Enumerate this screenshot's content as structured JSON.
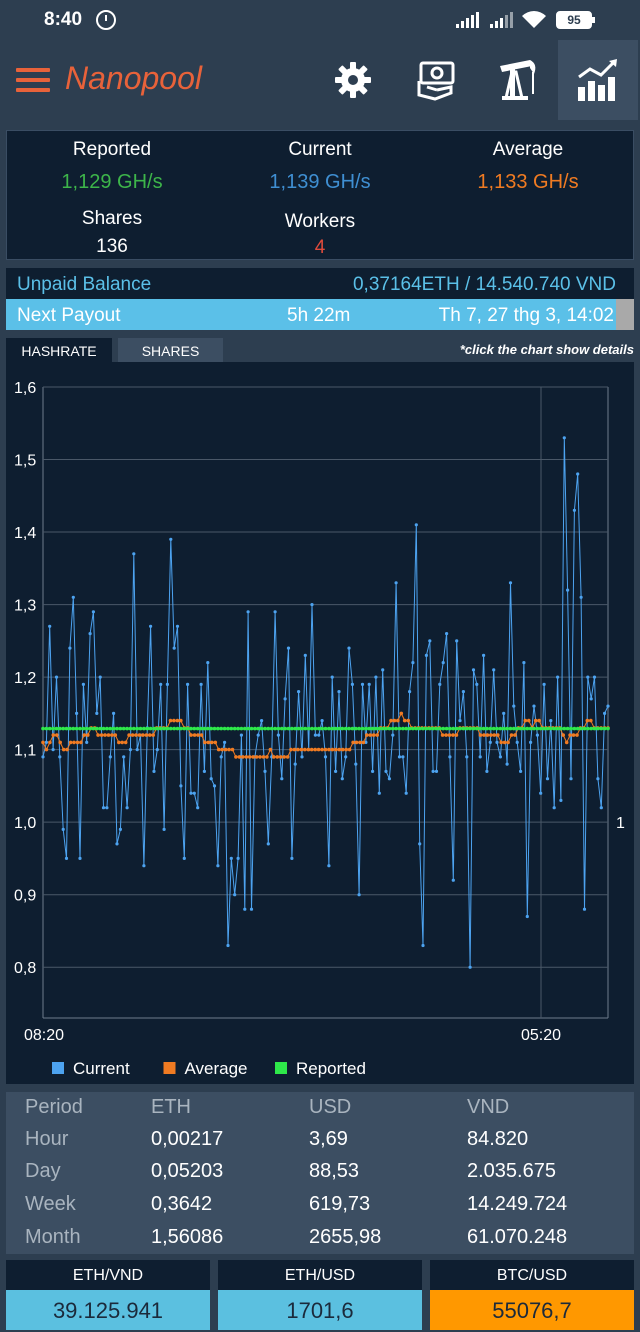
{
  "status_bar": {
    "time": "8:40",
    "battery": "95"
  },
  "app": {
    "title": "Nanopool"
  },
  "toolbar": {
    "icons": [
      "gear-icon",
      "payment-hand-icon",
      "oil-pump-icon",
      "chart-icon"
    ]
  },
  "stats": {
    "reported": {
      "label": "Reported",
      "value": "1,129 GH/s",
      "color": "#3db54a"
    },
    "current": {
      "label": "Current",
      "value": "1,139 GH/s",
      "color": "#3f8fd2"
    },
    "average": {
      "label": "Average",
      "value": "1,133 GH/s",
      "color": "#f07b22"
    },
    "shares": {
      "label": "Shares",
      "value": "136"
    },
    "workers": {
      "label": "Workers",
      "value": "4",
      "color": "#e04b3c"
    }
  },
  "balance": {
    "unpaid_label": "Unpaid Balance",
    "unpaid_value": "0,37164ETH / 14.540.740 VND",
    "payout_label": "Next Payout",
    "payout_eta": "5h 22m",
    "payout_date": "Th 7, 27 thg 3, 14:02"
  },
  "tabs": [
    {
      "label": "HASHRATE"
    },
    {
      "label": "SHARES"
    }
  ],
  "chart_hint": "*click the chart show details",
  "chart_data": {
    "type": "line",
    "x_ticks": [
      "08:20",
      "05:20"
    ],
    "y_ticks": [
      "1,6",
      "1,5",
      "1,4",
      "1,3",
      "1,2",
      "1,1",
      "1,0",
      "0,9",
      "0,8"
    ],
    "right_tick": "1",
    "ylim": [
      0.73,
      1.6
    ],
    "legend_position": "bottom-left",
    "series": [
      {
        "name": "Current",
        "color": "#4da3f0",
        "values": [
          1.09,
          1.11,
          1.27,
          1.1,
          1.2,
          1.09,
          0.99,
          0.95,
          1.24,
          1.31,
          1.15,
          0.95,
          1.19,
          1.11,
          1.26,
          1.29,
          1.15,
          1.2,
          1.02,
          1.02,
          1.09,
          1.15,
          0.97,
          0.99,
          1.09,
          1.02,
          1.1,
          1.37,
          1.1,
          1.12,
          0.94,
          1.13,
          1.27,
          1.07,
          1.1,
          1.19,
          0.99,
          1.19,
          1.39,
          1.24,
          1.27,
          1.05,
          0.95,
          1.19,
          1.04,
          1.04,
          1.02,
          1.19,
          1.07,
          1.22,
          1.06,
          1.05,
          0.94,
          1.09,
          1.11,
          0.83,
          0.95,
          0.9,
          0.95,
          1.12,
          0.88,
          1.29,
          0.88,
          1.09,
          1.12,
          1.14,
          1.07,
          0.97,
          1.09,
          1.29,
          1.12,
          1.06,
          1.17,
          1.24,
          0.95,
          1.08,
          1.18,
          1.09,
          1.23,
          1.1,
          1.3,
          1.12,
          1.12,
          1.14,
          1.09,
          0.94,
          1.2,
          1.07,
          1.18,
          1.06,
          1.09,
          1.24,
          1.19,
          1.08,
          0.9,
          1.19,
          1.11,
          1.19,
          1.07,
          1.2,
          1.04,
          1.21,
          1.07,
          1.06,
          1.12,
          1.33,
          1.09,
          1.09,
          1.04,
          1.18,
          1.22,
          1.41,
          0.97,
          0.83,
          1.23,
          1.25,
          1.07,
          1.07,
          1.19,
          1.22,
          1.26,
          1.09,
          0.92,
          1.25,
          1.14,
          1.18,
          1.09,
          0.8,
          1.21,
          1.19,
          1.09,
          1.23,
          1.07,
          1.11,
          1.21,
          1.11,
          1.09,
          1.15,
          1.08,
          1.33,
          1.16,
          1.11,
          1.07,
          1.22,
          0.87,
          1.11,
          1.16,
          1.12,
          1.04,
          1.19,
          1.06,
          1.14,
          1.02,
          1.2,
          1.03,
          1.53,
          1.32,
          1.06,
          1.43,
          1.48,
          1.31,
          0.88,
          1.2,
          1.17,
          1.2,
          1.06,
          1.02,
          1.15,
          1.16
        ]
      },
      {
        "name": "Average",
        "color": "#f07b22",
        "values": [
          1.11,
          1.1,
          1.11,
          1.12,
          1.12,
          1.11,
          1.1,
          1.1,
          1.11,
          1.11,
          1.11,
          1.11,
          1.12,
          1.12,
          1.13,
          1.13,
          1.12,
          1.12,
          1.12,
          1.12,
          1.12,
          1.12,
          1.11,
          1.11,
          1.11,
          1.12,
          1.12,
          1.12,
          1.12,
          1.12,
          1.12,
          1.12,
          1.12,
          1.13,
          1.13,
          1.13,
          1.13,
          1.14,
          1.14,
          1.14,
          1.14,
          1.13,
          1.13,
          1.12,
          1.12,
          1.12,
          1.12,
          1.11,
          1.11,
          1.11,
          1.11,
          1.1,
          1.1,
          1.1,
          1.1,
          1.1,
          1.09,
          1.09,
          1.09,
          1.09,
          1.09,
          1.09,
          1.09,
          1.09,
          1.09,
          1.09,
          1.1,
          1.09,
          1.09,
          1.09,
          1.09,
          1.09,
          1.1,
          1.1,
          1.1,
          1.1,
          1.1,
          1.1,
          1.1,
          1.1,
          1.1,
          1.1,
          1.1,
          1.1,
          1.1,
          1.1,
          1.1,
          1.1,
          1.1,
          1.1,
          1.11,
          1.11,
          1.11,
          1.11,
          1.12,
          1.12,
          1.12,
          1.12,
          1.13,
          1.13,
          1.13,
          1.14,
          1.14,
          1.14,
          1.15,
          1.14,
          1.14,
          1.13,
          1.13,
          1.13,
          1.13,
          1.13,
          1.13,
          1.13,
          1.13,
          1.13,
          1.12,
          1.12,
          1.12,
          1.12,
          1.12,
          1.13,
          1.13,
          1.13,
          1.13,
          1.13,
          1.13,
          1.12,
          1.12,
          1.12,
          1.12,
          1.12,
          1.12,
          1.11,
          1.11,
          1.11,
          1.12,
          1.12,
          1.13,
          1.13,
          1.14,
          1.14,
          1.13,
          1.14,
          1.14,
          1.13,
          1.13,
          1.13,
          1.13,
          1.13,
          1.13,
          1.12,
          1.11,
          1.12,
          1.12,
          1.12,
          1.13,
          1.13,
          1.14,
          1.14,
          1.13,
          1.13,
          1.13,
          1.13,
          1.13
        ]
      },
      {
        "name": "Reported",
        "color": "#2ee84a",
        "values": [
          1.129,
          1.129,
          1.129,
          1.129,
          1.129,
          1.129,
          1.129,
          1.129,
          1.129,
          1.129,
          1.129,
          1.129,
          1.129,
          1.129,
          1.129,
          1.129,
          1.129,
          1.129,
          1.129,
          1.129,
          1.129,
          1.129,
          1.129,
          1.129,
          1.129,
          1.129,
          1.129,
          1.129,
          1.129,
          1.129,
          1.129,
          1.129,
          1.129,
          1.129,
          1.129,
          1.129,
          1.129,
          1.129,
          1.129,
          1.129,
          1.129,
          1.129,
          1.129,
          1.129,
          1.129,
          1.129,
          1.129,
          1.129,
          1.129,
          1.129,
          1.129,
          1.129,
          1.129,
          1.129,
          1.129,
          1.129,
          1.129,
          1.129,
          1.129,
          1.129,
          1.129,
          1.129,
          1.129,
          1.129,
          1.129,
          1.129,
          1.129,
          1.129,
          1.129,
          1.129,
          1.129,
          1.129,
          1.129,
          1.129,
          1.129,
          1.129,
          1.129,
          1.129,
          1.129,
          1.129,
          1.129,
          1.129,
          1.129,
          1.129,
          1.129,
          1.129,
          1.129,
          1.129,
          1.129,
          1.129,
          1.129,
          1.129,
          1.129,
          1.129,
          1.129,
          1.129,
          1.129,
          1.129,
          1.129,
          1.129,
          1.129,
          1.129,
          1.129,
          1.129,
          1.129,
          1.129,
          1.129,
          1.129,
          1.129,
          1.129,
          1.129,
          1.129,
          1.129,
          1.129,
          1.129,
          1.129,
          1.129,
          1.129,
          1.129,
          1.129,
          1.129,
          1.129,
          1.129,
          1.129,
          1.129,
          1.129,
          1.129,
          1.129,
          1.129,
          1.129,
          1.129,
          1.129,
          1.129,
          1.129,
          1.129,
          1.129,
          1.129,
          1.129,
          1.129,
          1.129,
          1.129,
          1.129,
          1.129,
          1.129,
          1.129,
          1.129,
          1.129,
          1.129,
          1.129,
          1.129,
          1.129,
          1.129,
          1.129,
          1.129,
          1.129,
          1.129,
          1.129,
          1.129,
          1.129,
          1.129,
          1.129,
          1.129,
          1.129,
          1.129,
          1.129,
          1.129,
          1.129,
          1.129,
          1.129
        ]
      }
    ]
  },
  "earnings": {
    "headers": [
      "Period",
      "ETH",
      "USD",
      "VND"
    ],
    "rows": [
      [
        "Hour",
        "0,00217",
        "3,69",
        "84.820"
      ],
      [
        "Day",
        "0,05203",
        "88,53",
        "2.035.675"
      ],
      [
        "Week",
        "0,3642",
        "619,73",
        "14.249.724"
      ],
      [
        "Month",
        "1,56086",
        "2655,98",
        "61.070.248"
      ]
    ]
  },
  "rates": [
    {
      "label": "ETH/VND",
      "value": "39.125.941",
      "color": "#5bc0e0"
    },
    {
      "label": "ETH/USD",
      "value": "1701,6",
      "color": "#5bc0e0"
    },
    {
      "label": "BTC/USD",
      "value": "55076,7",
      "color": "#ff9800"
    }
  ]
}
